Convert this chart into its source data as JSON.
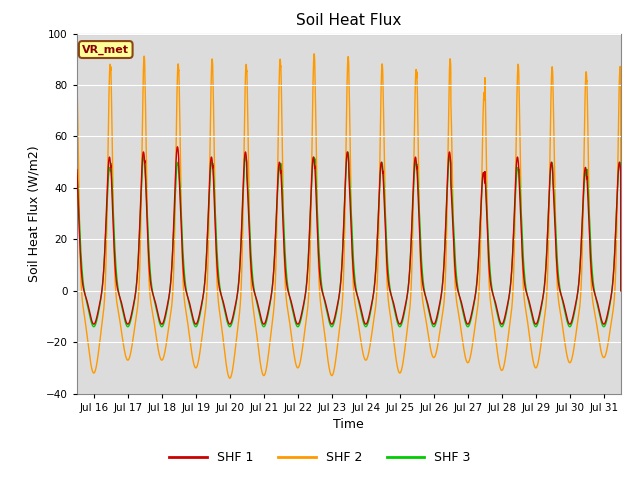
{
  "title": "Soil Heat Flux",
  "ylabel": "Soil Heat Flux (W/m2)",
  "xlabel": "Time",
  "ylim": [
    -40,
    100
  ],
  "yticks": [
    -40,
    -20,
    0,
    20,
    40,
    60,
    80,
    100
  ],
  "colors": {
    "SHF 1": "#cc0000",
    "SHF 2": "#ff9900",
    "SHF 3": "#00cc00"
  },
  "background_color": "#dcdcdc",
  "figure_color": "#ffffff",
  "vr_met_label": "VR_met",
  "vr_met_text_color": "#8b0000",
  "vr_met_box_color": "#ffff99",
  "xlim": [
    15.5,
    31.5
  ],
  "xtick_days": [
    16,
    17,
    18,
    19,
    20,
    21,
    22,
    23,
    24,
    25,
    26,
    27,
    28,
    29,
    30,
    31
  ],
  "n_hours": 3840,
  "samples_per_day": 240
}
